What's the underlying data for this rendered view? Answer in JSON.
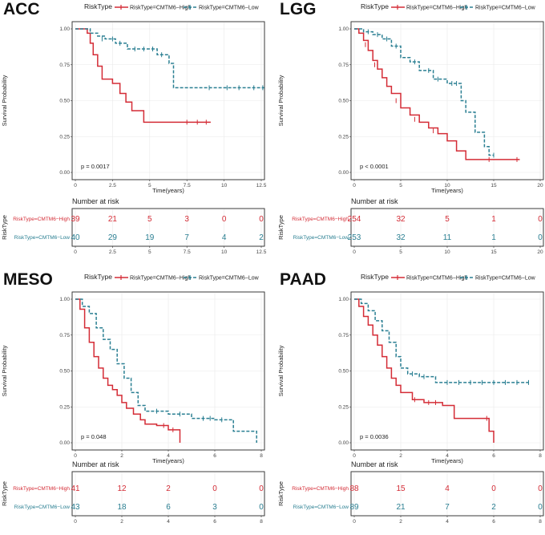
{
  "legend": {
    "title": "RiskType",
    "high_label": "RiskType=CMTM6−High",
    "low_label": "RiskType=CMTM6−Low"
  },
  "colors": {
    "high": "#d42c36",
    "low": "#2a7f92",
    "grid": "#e9e9e9",
    "border": "#333333"
  },
  "axis": {
    "x_title": "Time(years)",
    "y_title": "Survival Probability",
    "risk_y_title": "RiskType",
    "risk_table_title": "Number at risk",
    "y_ticks": [
      "0.00",
      "0.25",
      "0.50",
      "0.75",
      "1.00"
    ]
  },
  "chart_data": [
    {
      "type": "line",
      "title": "ACC",
      "xlabel": "Time(years)",
      "ylabel": "Survival Probability",
      "xlim": [
        0,
        12.5
      ],
      "ylim": [
        0,
        1
      ],
      "x_ticks": [
        0,
        2.5,
        5,
        7.5,
        10,
        12.5
      ],
      "x_tick_labels": [
        "0",
        "2.5",
        "5",
        "7.5",
        "10",
        "12.5"
      ],
      "p_value": "p = 0.0017",
      "series": [
        {
          "name": "RiskType=CMTM6−High",
          "x": [
            0,
            0.8,
            1.0,
            1.2,
            1.5,
            1.8,
            2.5,
            3.0,
            3.4,
            3.8,
            4.6,
            9.1
          ],
          "y": [
            1.0,
            0.97,
            0.9,
            0.82,
            0.74,
            0.65,
            0.62,
            0.55,
            0.49,
            0.43,
            0.35,
            0.35
          ],
          "censored": [
            [
              7.5,
              0.35
            ],
            [
              8.2,
              0.35
            ],
            [
              8.8,
              0.35
            ]
          ]
        },
        {
          "name": "RiskType=CMTM6−Low",
          "x": [
            0,
            1.0,
            1.5,
            2.0,
            2.7,
            3.5,
            5.5,
            6.3,
            6.6,
            12.7
          ],
          "y": [
            1.0,
            0.97,
            0.95,
            0.93,
            0.9,
            0.86,
            0.82,
            0.76,
            0.59,
            0.59
          ],
          "censored": [
            [
              1.8,
              0.93
            ],
            [
              2.5,
              0.93
            ],
            [
              3.0,
              0.9
            ],
            [
              4.0,
              0.86
            ],
            [
              4.6,
              0.86
            ],
            [
              5.2,
              0.86
            ],
            [
              5.8,
              0.82
            ],
            [
              9.0,
              0.59
            ],
            [
              10.2,
              0.59
            ],
            [
              11.0,
              0.59
            ],
            [
              12.0,
              0.59
            ],
            [
              12.6,
              0.59
            ]
          ]
        }
      ],
      "risk_table": {
        "high": [
          "39",
          "21",
          "5",
          "3",
          "0",
          "0"
        ],
        "low": [
          "40",
          "29",
          "19",
          "7",
          "4",
          "2"
        ]
      }
    },
    {
      "type": "line",
      "title": "LGG",
      "xlabel": "Time(years)",
      "ylabel": "Survival Probability",
      "xlim": [
        0,
        20
      ],
      "ylim": [
        0,
        1
      ],
      "x_ticks": [
        0,
        5,
        10,
        15,
        20
      ],
      "x_tick_labels": [
        "0",
        "5",
        "10",
        "15",
        "20"
      ],
      "p_value": "p < 0.0001",
      "series": [
        {
          "name": "RiskType=CMTM6−High",
          "x": [
            0,
            0.5,
            1.0,
            1.5,
            2.0,
            2.5,
            3.0,
            3.5,
            4.0,
            5.0,
            6.0,
            7.0,
            8.0,
            9.0,
            10.0,
            11.0,
            12.0,
            17.8
          ],
          "y": [
            1.0,
            0.97,
            0.92,
            0.85,
            0.78,
            0.72,
            0.66,
            0.6,
            0.55,
            0.45,
            0.4,
            0.35,
            0.31,
            0.27,
            0.22,
            0.15,
            0.09,
            0.09
          ],
          "censored": [
            [
              1.2,
              0.89
            ],
            [
              2.2,
              0.75
            ],
            [
              4.5,
              0.5
            ],
            [
              6.5,
              0.37
            ],
            [
              8.5,
              0.29
            ],
            [
              14.5,
              0.09
            ],
            [
              17.5,
              0.09
            ]
          ]
        },
        {
          "name": "RiskType=CMTM6−Low",
          "x": [
            0,
            1.0,
            2.0,
            3.0,
            4.0,
            5.0,
            6.0,
            7.0,
            8.5,
            10.0,
            11.5,
            12.0,
            13.0,
            14.0,
            14.5,
            15.0
          ],
          "y": [
            1.0,
            0.98,
            0.96,
            0.93,
            0.88,
            0.8,
            0.77,
            0.71,
            0.65,
            0.62,
            0.5,
            0.42,
            0.28,
            0.18,
            0.12,
            0.12
          ],
          "censored": [
            [
              1.5,
              0.98
            ],
            [
              2.5,
              0.96
            ],
            [
              3.5,
              0.93
            ],
            [
              4.5,
              0.88
            ],
            [
              6.5,
              0.77
            ],
            [
              8.0,
              0.71
            ],
            [
              9.0,
              0.65
            ],
            [
              10.5,
              0.62
            ],
            [
              11.0,
              0.62
            ],
            [
              15.0,
              0.12
            ]
          ]
        }
      ],
      "risk_table": {
        "high": [
          "254",
          "32",
          "5",
          "1",
          "0"
        ],
        "low": [
          "253",
          "32",
          "11",
          "1",
          "0"
        ]
      }
    },
    {
      "type": "line",
      "title": "MESO",
      "xlabel": "Time(years)",
      "ylabel": "Survival Probability",
      "xlim": [
        0,
        8
      ],
      "ylim": [
        0,
        1
      ],
      "x_ticks": [
        0,
        2,
        4,
        6,
        8
      ],
      "x_tick_labels": [
        "0",
        "2",
        "4",
        "6",
        "8"
      ],
      "p_value": "p = 0.048",
      "series": [
        {
          "name": "RiskType=CMTM6−High",
          "x": [
            0,
            0.2,
            0.4,
            0.6,
            0.8,
            1.0,
            1.2,
            1.4,
            1.6,
            1.8,
            2.0,
            2.2,
            2.5,
            2.8,
            3.0,
            3.5,
            4.0,
            4.5,
            4.5
          ],
          "y": [
            1.0,
            0.93,
            0.8,
            0.7,
            0.6,
            0.52,
            0.45,
            0.4,
            0.37,
            0.33,
            0.28,
            0.24,
            0.2,
            0.16,
            0.13,
            0.12,
            0.09,
            0.09,
            0.0
          ],
          "censored": [
            [
              3.8,
              0.12
            ],
            [
              4.2,
              0.09
            ]
          ]
        },
        {
          "name": "RiskType=CMTM6−Low",
          "x": [
            0,
            0.3,
            0.6,
            0.9,
            1.2,
            1.5,
            1.8,
            2.1,
            2.4,
            2.7,
            3.0,
            4.0,
            5.0,
            6.0,
            6.8,
            7.8,
            7.8
          ],
          "y": [
            1.0,
            0.95,
            0.9,
            0.8,
            0.72,
            0.65,
            0.55,
            0.45,
            0.35,
            0.26,
            0.22,
            0.2,
            0.17,
            0.16,
            0.08,
            0.08,
            0.0
          ],
          "censored": [
            [
              3.5,
              0.22
            ],
            [
              4.5,
              0.2
            ],
            [
              5.5,
              0.17
            ],
            [
              5.8,
              0.17
            ],
            [
              6.3,
              0.16
            ]
          ]
        }
      ],
      "risk_table": {
        "high": [
          "41",
          "12",
          "2",
          "0",
          "0"
        ],
        "low": [
          "43",
          "18",
          "6",
          "3",
          "0"
        ]
      }
    },
    {
      "type": "line",
      "title": "PAAD",
      "xlabel": "Time(years)",
      "ylabel": "Survival Probability",
      "xlim": [
        0,
        8
      ],
      "ylim": [
        0,
        1
      ],
      "x_ticks": [
        0,
        2,
        4,
        6,
        8
      ],
      "x_tick_labels": [
        "0",
        "2",
        "4",
        "6",
        "8"
      ],
      "p_value": "p = 0.0036",
      "series": [
        {
          "name": "RiskType=CMTM6−High",
          "x": [
            0,
            0.2,
            0.4,
            0.6,
            0.8,
            1.0,
            1.2,
            1.4,
            1.6,
            1.8,
            2.0,
            2.5,
            3.0,
            3.8,
            4.3,
            5.8,
            6.0
          ],
          "y": [
            1.0,
            0.95,
            0.88,
            0.82,
            0.75,
            0.68,
            0.6,
            0.52,
            0.45,
            0.4,
            0.35,
            0.3,
            0.28,
            0.26,
            0.17,
            0.08,
            0.0
          ],
          "censored": [
            [
              2.6,
              0.3
            ],
            [
              3.2,
              0.28
            ],
            [
              3.5,
              0.28
            ],
            [
              5.7,
              0.17
            ]
          ]
        },
        {
          "name": "RiskType=CMTM6−Low",
          "x": [
            0,
            0.3,
            0.6,
            0.9,
            1.2,
            1.5,
            1.8,
            2.0,
            2.3,
            2.8,
            3.5,
            7.5
          ],
          "y": [
            1.0,
            0.97,
            0.92,
            0.85,
            0.78,
            0.7,
            0.6,
            0.52,
            0.48,
            0.46,
            0.42,
            0.42
          ],
          "censored": [
            [
              2.5,
              0.48
            ],
            [
              3.0,
              0.46
            ],
            [
              4.0,
              0.42
            ],
            [
              4.5,
              0.42
            ],
            [
              5.0,
              0.42
            ],
            [
              5.5,
              0.42
            ],
            [
              6.0,
              0.42
            ],
            [
              6.5,
              0.42
            ],
            [
              7.0,
              0.42
            ],
            [
              7.5,
              0.42
            ]
          ]
        }
      ],
      "risk_table": {
        "high": [
          "88",
          "15",
          "4",
          "0",
          "0"
        ],
        "low": [
          "89",
          "21",
          "7",
          "2",
          "0"
        ]
      }
    }
  ]
}
